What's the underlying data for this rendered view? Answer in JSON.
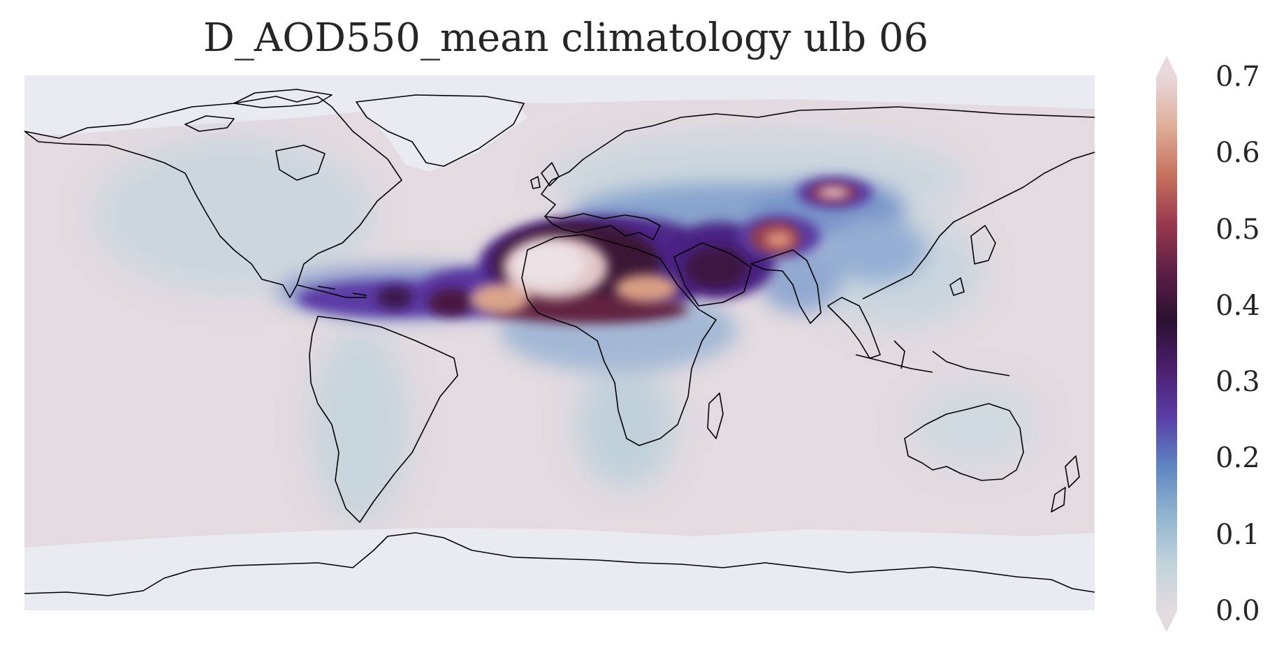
{
  "title": "D_AOD550_mean climatology ulb 06",
  "colorbar": {
    "ticks": [
      "0.0",
      "0.1",
      "0.2",
      "0.3",
      "0.4",
      "0.5",
      "0.6",
      "0.7"
    ],
    "vmin": 0.0,
    "vmax": 0.7,
    "extend": "both",
    "colormap": [
      "#e3dbe0",
      "#c0d3da",
      "#8fb3cf",
      "#5e84c2",
      "#5a3ea8",
      "#4b1e6e",
      "#2b1130",
      "#5e1f46",
      "#9b3a4f",
      "#c8735f",
      "#dfaf9a",
      "#e9d8dc"
    ]
  },
  "map": {
    "projection": "plate-carree",
    "ocean_color": "#e3dbe0",
    "nodata_color": "#eaeaf2",
    "coastline_color": "#000000",
    "hotspots": [
      {
        "region": "Sahara",
        "value": 0.7
      },
      {
        "region": "Sahel belt",
        "value": 0.5
      },
      {
        "region": "Tropical Atlantic dust plume",
        "value": 0.45
      },
      {
        "region": "Arabian Peninsula",
        "value": 0.4
      },
      {
        "region": "Thar Desert",
        "value": 0.55
      },
      {
        "region": "Taklamakan",
        "value": 0.6
      },
      {
        "region": "Middle East / Central Asia",
        "value": 0.2
      },
      {
        "region": "Southern Africa",
        "value": 0.1
      },
      {
        "region": "Australia",
        "value": 0.05
      }
    ]
  }
}
